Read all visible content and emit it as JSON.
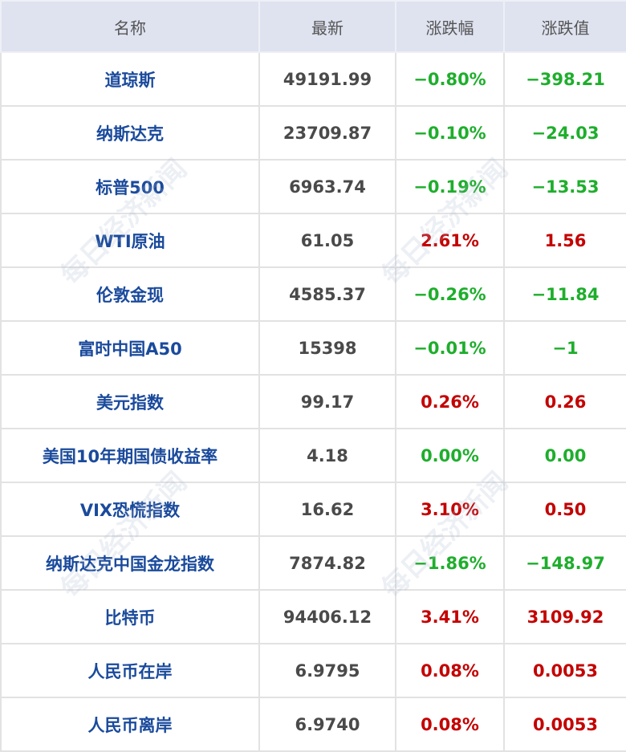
{
  "watermark": "每日经济新闻",
  "colors": {
    "name": "#1a4a9c",
    "down": "#1eae2c",
    "up": "#c40000",
    "header_bg": "#dfe3f0"
  },
  "headers": [
    "名称",
    "最新",
    "涨跌幅",
    "涨跌值"
  ],
  "rows": [
    {
      "name": "道琼斯",
      "latest": "49191.99",
      "pct": "−0.80%",
      "chg": "−398.21",
      "dir": "down"
    },
    {
      "name": "纳斯达克",
      "latest": "23709.87",
      "pct": "−0.10%",
      "chg": "−24.03",
      "dir": "down"
    },
    {
      "name": "标普500",
      "latest": "6963.74",
      "pct": "−0.19%",
      "chg": "−13.53",
      "dir": "down"
    },
    {
      "name": "WTI原油",
      "latest": "61.05",
      "pct": "2.61%",
      "chg": "1.56",
      "dir": "up"
    },
    {
      "name": "伦敦金现",
      "latest": "4585.37",
      "pct": "−0.26%",
      "chg": "−11.84",
      "dir": "down"
    },
    {
      "name": "富时中国A50",
      "latest": "15398",
      "pct": "−0.01%",
      "chg": "−1",
      "dir": "down"
    },
    {
      "name": "美元指数",
      "latest": "99.17",
      "pct": "0.26%",
      "chg": "0.26",
      "dir": "up"
    },
    {
      "name": "美国10年期国债收益率",
      "latest": "4.18",
      "pct": "0.00%",
      "chg": "0.00",
      "dir": "flat"
    },
    {
      "name": "VIX恐慌指数",
      "latest": "16.62",
      "pct": "3.10%",
      "chg": "0.50",
      "dir": "up"
    },
    {
      "name": "纳斯达克中国金龙指数",
      "latest": "7874.82",
      "pct": "−1.86%",
      "chg": "−148.97",
      "dir": "down"
    },
    {
      "name": "比特币",
      "latest": "94406.12",
      "pct": "3.41%",
      "chg": "3109.92",
      "dir": "up"
    },
    {
      "name": "人民币在岸",
      "latest": "6.9795",
      "pct": "0.08%",
      "chg": "0.0053",
      "dir": "up"
    },
    {
      "name": "人民币离岸",
      "latest": "6.9740",
      "pct": "0.08%",
      "chg": "0.0053",
      "dir": "up"
    }
  ]
}
